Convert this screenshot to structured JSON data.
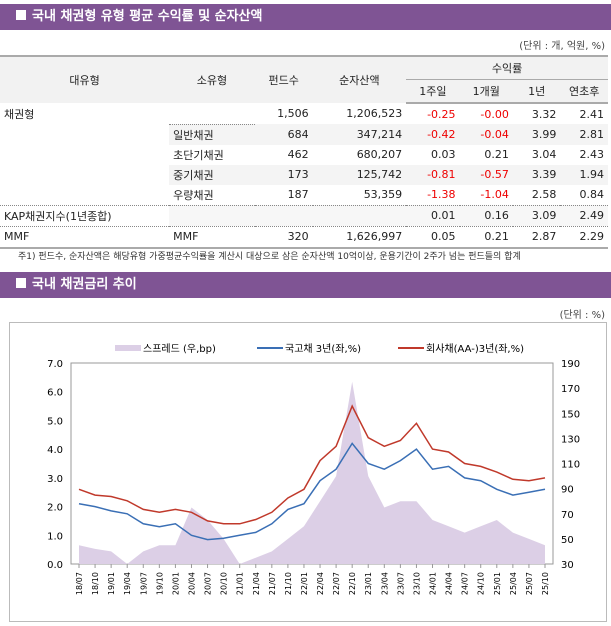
{
  "section1": {
    "title": "국내 채권형 유형 평균 수익률 및 순자산액",
    "unit": "(단위 : 개, 억원, %)"
  },
  "table": {
    "headers": {
      "major": "대유형",
      "minor": "소유형",
      "funds": "펀드수",
      "assets": "순자산액",
      "returns": "수익률",
      "w1": "1주일",
      "m1": "1개월",
      "y1": "1년",
      "ytd": "연초후"
    },
    "rows": [
      {
        "major": "채권형",
        "minor": "",
        "funds": "1,506",
        "assets": "1,206,523",
        "w1": "-0.25",
        "m1": "-0.00",
        "y1": "3.32",
        "ytd": "2.41"
      },
      {
        "major": "",
        "minor": "일반채권",
        "funds": "684",
        "assets": "347,214",
        "w1": "-0.42",
        "m1": "-0.04",
        "y1": "3.99",
        "ytd": "2.81"
      },
      {
        "major": "",
        "minor": "초단기채권",
        "funds": "462",
        "assets": "680,207",
        "w1": "0.03",
        "m1": "0.21",
        "y1": "3.04",
        "ytd": "2.43"
      },
      {
        "major": "",
        "minor": "중기채권",
        "funds": "173",
        "assets": "125,742",
        "w1": "-0.81",
        "m1": "-0.57",
        "y1": "3.39",
        "ytd": "1.94"
      },
      {
        "major": "",
        "minor": "우량채권",
        "funds": "187",
        "assets": "53,359",
        "w1": "-1.38",
        "m1": "-1.04",
        "y1": "2.58",
        "ytd": "0.84"
      },
      {
        "major": "KAP채권지수(1년종합)",
        "minor": "",
        "funds": "",
        "assets": "",
        "w1": "0.01",
        "m1": "0.16",
        "y1": "3.09",
        "ytd": "2.49"
      },
      {
        "major": "MMF",
        "minor": "MMF",
        "funds": "320",
        "assets": "1,626,997",
        "w1": "0.05",
        "m1": "0.21",
        "y1": "2.87",
        "ytd": "2.29"
      }
    ]
  },
  "note": "주1) 펀드수, 순자산액은 해당유형 가중평균수익률을 계산시 대상으로 삼은 순자산액 10억이상, 운용기간이 2주가 넘는 펀드들의 합계",
  "section2": {
    "title": "국내 채권금리 추이",
    "unit": "(단위 : %)"
  },
  "chart_data": {
    "type": "line",
    "x": [
      "18/07",
      "18/10",
      "19/01",
      "19/04",
      "19/07",
      "19/10",
      "20/01",
      "20/04",
      "20/07",
      "20/10",
      "21/01",
      "21/04",
      "21/07",
      "21/10",
      "22/01",
      "22/04",
      "22/07",
      "22/10",
      "23/01",
      "23/04",
      "23/07",
      "23/10",
      "24/01",
      "24/04",
      "24/07",
      "24/10",
      "25/01",
      "25/04",
      "25/07",
      "25/10"
    ],
    "y_left": {
      "range": [
        0,
        7
      ],
      "ticks": [
        "0.0",
        "1.0",
        "2.0",
        "3.0",
        "4.0",
        "5.0",
        "6.0",
        "7.0"
      ]
    },
    "y_right": {
      "range": [
        30,
        190
      ],
      "ticks": [
        "30",
        "50",
        "70",
        "90",
        "110",
        "130",
        "150",
        "170",
        "190"
      ]
    },
    "series": [
      {
        "name": "스프레드 (우,bp)",
        "type": "area",
        "axis": "right",
        "color": "#dccfe6",
        "values": [
          45,
          42,
          40,
          30,
          40,
          45,
          45,
          75,
          65,
          50,
          30,
          35,
          40,
          50,
          60,
          80,
          100,
          175,
          100,
          75,
          80,
          80,
          65,
          60,
          55,
          60,
          65,
          55,
          50,
          45
        ]
      },
      {
        "name": "국고채 3년(좌,%)",
        "type": "line",
        "axis": "left",
        "color": "#3a6fb5",
        "values": [
          2.1,
          2.0,
          1.85,
          1.75,
          1.4,
          1.3,
          1.4,
          1.0,
          0.85,
          0.9,
          1.0,
          1.1,
          1.4,
          1.9,
          2.1,
          2.9,
          3.3,
          4.2,
          3.5,
          3.3,
          3.6,
          4.0,
          3.3,
          3.4,
          3.0,
          2.9,
          2.6,
          2.4,
          2.5,
          2.6
        ]
      },
      {
        "name": "회사채(AA-)3년(좌,%)",
        "type": "line",
        "axis": "left",
        "color": "#c0392b",
        "values": [
          2.6,
          2.4,
          2.35,
          2.2,
          1.9,
          1.8,
          1.9,
          1.8,
          1.5,
          1.4,
          1.4,
          1.55,
          1.8,
          2.3,
          2.6,
          3.6,
          4.1,
          5.5,
          4.4,
          4.1,
          4.3,
          4.9,
          4.0,
          3.9,
          3.5,
          3.4,
          3.2,
          2.95,
          2.9,
          3.0
        ]
      }
    ]
  }
}
